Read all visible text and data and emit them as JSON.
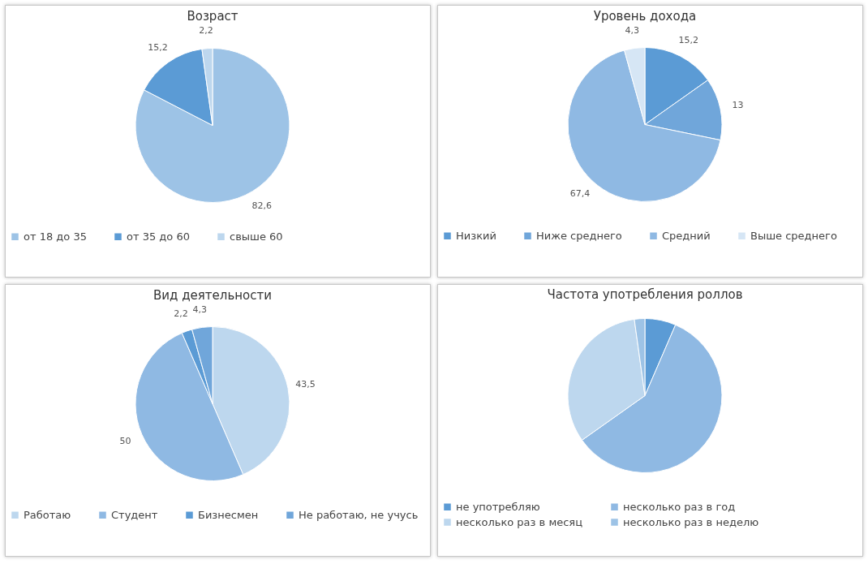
{
  "chart_data": [
    {
      "type": "pie",
      "title": "Возраст",
      "categories": [
        "от 18 до 35",
        "от 35 до 60",
        "свыше 60"
      ],
      "values": [
        82.6,
        15.2,
        2.2
      ],
      "value_labels": [
        "82,6",
        "15,2",
        "2,2"
      ],
      "colors": [
        "#9dc3e6",
        "#5b9bd5",
        "#bdd7ee"
      ],
      "legend": "bottom"
    },
    {
      "type": "pie",
      "title": "Уровень дохода",
      "categories": [
        "Низкий",
        "Ниже среднего",
        "Средний",
        "Выше среднего"
      ],
      "values": [
        15.2,
        13,
        67.4,
        4.3
      ],
      "value_labels": [
        "15,2",
        "13",
        "67,4",
        "4,3"
      ],
      "colors": [
        "#5b9bd5",
        "#70a6da",
        "#8fb9e3",
        "#d6e6f5"
      ],
      "legend": "bottom"
    },
    {
      "type": "pie",
      "title": "Вид деятельности",
      "categories": [
        "Работаю",
        "Студент",
        "Бизнесмен",
        "Не работаю, не учусь"
      ],
      "values": [
        43.5,
        50,
        2.2,
        4.3
      ],
      "value_labels": [
        "43,5",
        "50",
        "2,2",
        "4,3"
      ],
      "colors": [
        "#bdd7ee",
        "#8fb9e3",
        "#5b9bd5",
        "#70a6da"
      ],
      "legend": "bottom"
    },
    {
      "type": "pie",
      "title": "Частота употребления роллов",
      "categories": [
        "не употребляю",
        "несколько раз в год",
        "несколько раз в месяц",
        "несколько раз в неделю"
      ],
      "values": [
        6.5,
        58.7,
        32.6,
        2.2
      ],
      "colors": [
        "#5b9bd5",
        "#8fb9e3",
        "#bdd7ee",
        "#9dc3e6"
      ],
      "legend": "bottom"
    }
  ]
}
